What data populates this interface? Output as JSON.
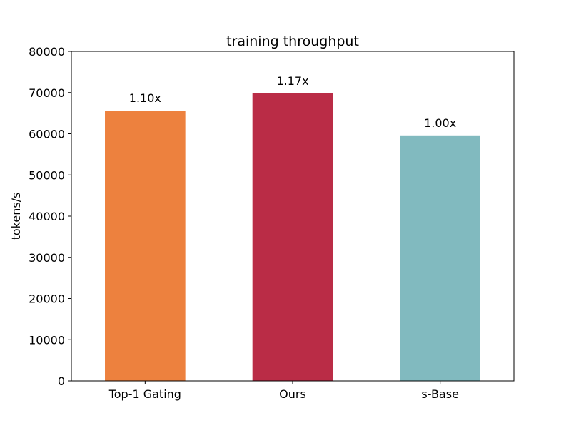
{
  "chart_data": {
    "type": "bar",
    "title": "training throughput",
    "xlabel": "",
    "ylabel": "tokens/s",
    "categories": [
      "Top-1 Gating",
      "Ours",
      "s-Base"
    ],
    "values": [
      65600,
      69800,
      59600
    ],
    "data_labels": [
      "1.10x",
      "1.17x",
      "1.00x"
    ],
    "colors": [
      "#ED813E",
      "#BA2C46",
      "#81BABF"
    ],
    "ylim": [
      0,
      80000
    ],
    "yticks": [
      0,
      10000,
      20000,
      30000,
      40000,
      50000,
      60000,
      70000,
      80000
    ],
    "grid": false,
    "legend": "none"
  }
}
